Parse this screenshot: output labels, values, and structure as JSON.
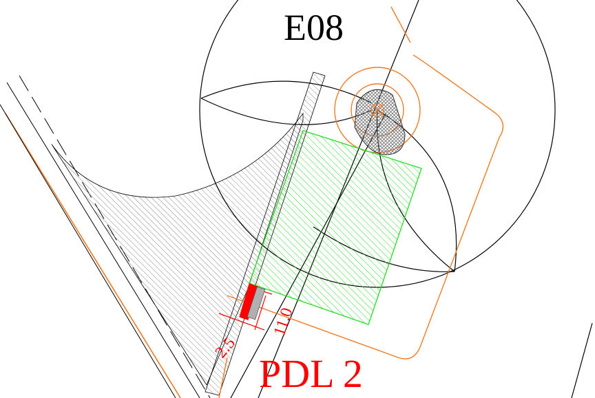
{
  "labels": {
    "station": "E08",
    "zone": "PDL 2",
    "dim_long": "11.0",
    "dim_short": "2.5"
  },
  "colors": {
    "line": "#000000",
    "hatch_gray": "#8a8a8a",
    "orange": "#f07a23",
    "green": "#22dd22",
    "red": "#ff0000",
    "background": "#ffffff"
  }
}
